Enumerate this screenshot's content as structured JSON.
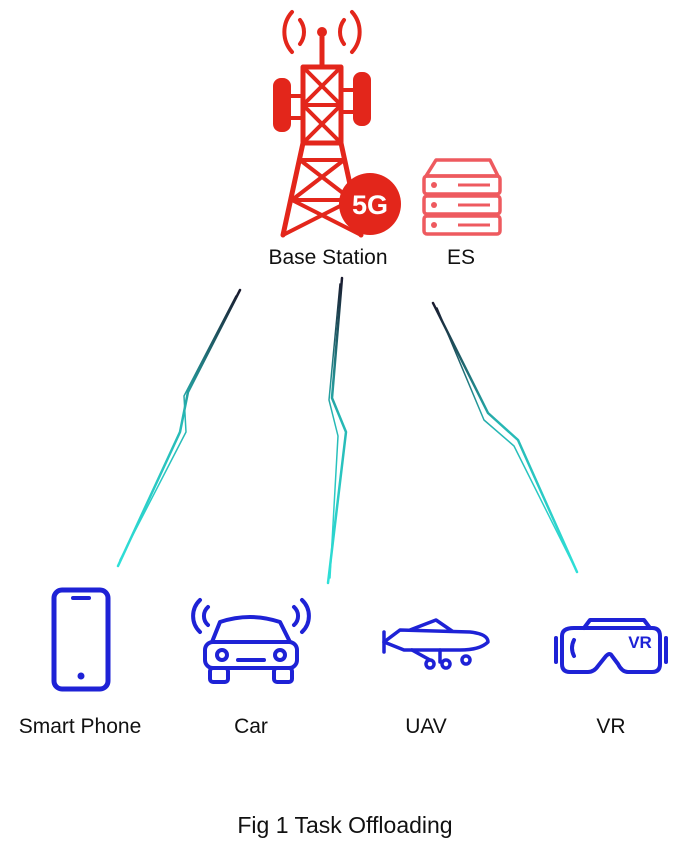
{
  "nodes": {
    "base_station": {
      "label": "Base Station",
      "badge": "5G",
      "icon": "cell-tower-icon"
    },
    "edge_server": {
      "label": "ES",
      "icon": "server-icon"
    },
    "devices": [
      {
        "label": "Smart Phone",
        "icon": "smartphone-icon"
      },
      {
        "label": "Car",
        "icon": "connected-car-icon"
      },
      {
        "label": "UAV",
        "icon": "drone-icon"
      },
      {
        "label": "VR",
        "icon": "vr-headset-icon",
        "badge": "VR"
      }
    ]
  },
  "caption": "Fig 1 Task Offloading",
  "colors": {
    "infrastructure": "#e3261b",
    "server": "#ee5a5f",
    "devices": "#1e22d6",
    "link_start": "#1a1a2e",
    "link_end": "#2fe0d8"
  }
}
